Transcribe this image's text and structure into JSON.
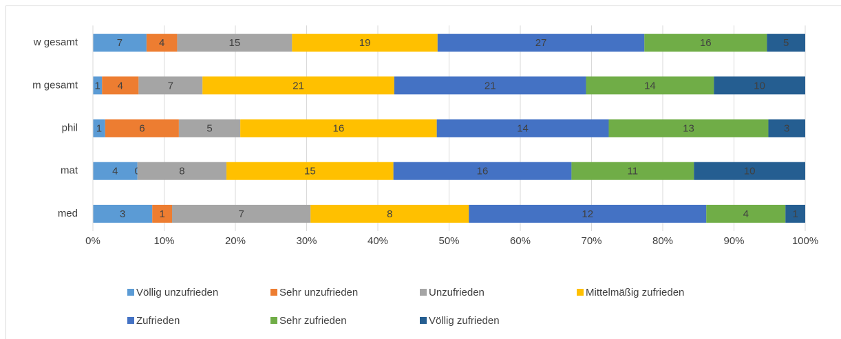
{
  "chart_data": {
    "type": "bar",
    "orientation": "horizontal",
    "stacked": "percent",
    "categories": [
      "w gesamt",
      "m gesamt",
      "phil",
      "mat",
      "med"
    ],
    "series": [
      {
        "name": "Völlig unzufrieden",
        "color": "#5b9bd5",
        "values": [
          7,
          1,
          1,
          4,
          3
        ]
      },
      {
        "name": "Sehr unzufrieden",
        "color": "#ed7d31",
        "values": [
          4,
          4,
          6,
          0,
          1
        ]
      },
      {
        "name": "Unzufrieden",
        "color": "#a5a5a5",
        "values": [
          15,
          7,
          5,
          8,
          7
        ]
      },
      {
        "name": "Mittelmäßig zufrieden",
        "color": "#ffc000",
        "values": [
          19,
          21,
          16,
          15,
          8
        ]
      },
      {
        "name": "Zufrieden",
        "color": "#4472c4",
        "values": [
          27,
          21,
          14,
          16,
          12
        ]
      },
      {
        "name": "Sehr zufrieden",
        "color": "#70ad47",
        "values": [
          16,
          14,
          13,
          11,
          4
        ]
      },
      {
        "name": "Völlig zufrieden",
        "color": "#255e91",
        "values": [
          5,
          10,
          3,
          10,
          1
        ]
      }
    ],
    "xlim": [
      0,
      100
    ],
    "xticks": [
      {
        "value": 0,
        "label": "0%"
      },
      {
        "value": 10,
        "label": "10%"
      },
      {
        "value": 20,
        "label": "20%"
      },
      {
        "value": 30,
        "label": "30%"
      },
      {
        "value": 40,
        "label": "40%"
      },
      {
        "value": 50,
        "label": "50%"
      },
      {
        "value": 60,
        "label": "60%"
      },
      {
        "value": 70,
        "label": "70%"
      },
      {
        "value": 80,
        "label": "80%"
      },
      {
        "value": 90,
        "label": "90%"
      },
      {
        "value": 100,
        "label": "100%"
      }
    ],
    "grid": true,
    "legend": "bottom"
  }
}
